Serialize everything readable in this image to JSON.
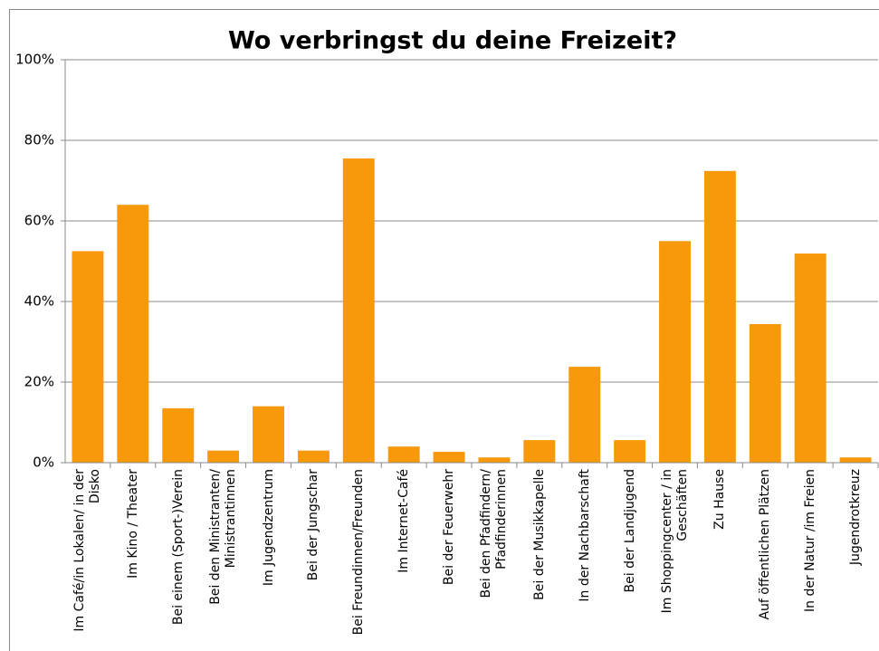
{
  "chart_data": {
    "type": "bar",
    "title": "Wo verbringst du deine Freizeit?",
    "categories": [
      "Im Café/in Lokalen/ in der Disko",
      "Im Kino / Theater",
      "Bei einem (Sport-)Verein",
      "Bei den Ministranten/ Ministrantinnen",
      "Im Jugendzentrum",
      "Bei der Jungschar",
      "Bei Freundinnen/Freunden",
      "Im Internet-Café",
      "Bei der Feuerwehr",
      "Bei den Pfadfindern/ Pfadfinderinnen",
      "Bei der Musikkapelle",
      "In der Nachbarschaft",
      "Bei der Landjugend",
      "Im Shoppingcenter / in Geschäften",
      "Zu Hause",
      "Auf öffentlichen Plätzen",
      "In der Natur /im Freien",
      "Jugendrotkreuz"
    ],
    "values": [
      52.5,
      64,
      13.5,
      3,
      14,
      3,
      75.5,
      4,
      2.7,
      1.3,
      5.6,
      23.8,
      5.6,
      55,
      72.4,
      34.4,
      51.9,
      1.3
    ],
    "color": "#f7990a",
    "ylim": [
      0,
      100
    ],
    "yticks": [
      {
        "value": 0,
        "label": "0%"
      },
      {
        "value": 20,
        "label": "20%"
      },
      {
        "value": 40,
        "label": "40%"
      },
      {
        "value": 60,
        "label": "60%"
      },
      {
        "value": 80,
        "label": "80%"
      },
      {
        "value": 100,
        "label": "100%"
      }
    ],
    "grid": true
  }
}
